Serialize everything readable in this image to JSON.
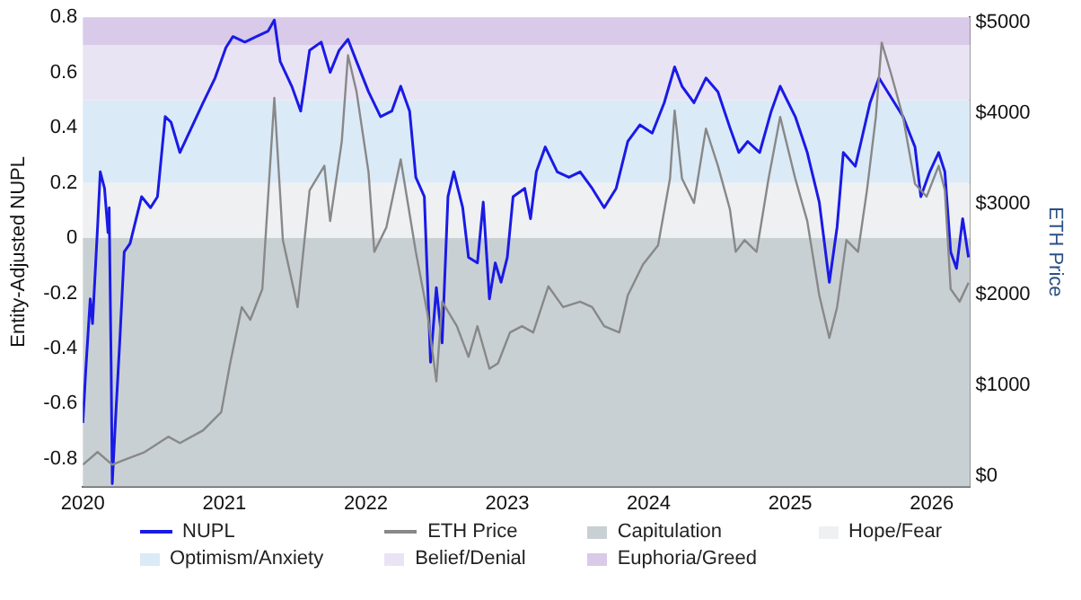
{
  "chart_data": {
    "type": "line",
    "ylabel": "Entity-Adjusted NUPL",
    "y2label": "ETH Price",
    "legend": "bottom",
    "grid": false,
    "marker": "none",
    "line_style": "solid",
    "xlim": [
      "2020-01-01",
      "2026-04-10"
    ],
    "xticks": [
      "2020",
      "2021",
      "2022",
      "2023",
      "2024",
      "2025",
      "2026"
    ],
    "ylim": [
      -0.9,
      0.8
    ],
    "yticks": [
      -0.8,
      -0.6,
      -0.4,
      -0.2,
      0,
      0.2,
      0.4,
      0.6,
      0.8
    ],
    "y2lim": [
      -120,
      5060
    ],
    "y2ticks": [
      {
        "value": 0,
        "label": "$0"
      },
      {
        "value": 1000,
        "label": "$1000"
      },
      {
        "value": 2000,
        "label": "$2000"
      },
      {
        "value": 3000,
        "label": "$3000"
      },
      {
        "value": 4000,
        "label": "$4000"
      },
      {
        "value": 5000,
        "label": "$5000"
      }
    ],
    "bands": [
      {
        "axis": "y",
        "from": -0.9,
        "to": 0,
        "label": "Capitulation",
        "color": "#c9d0d4"
      },
      {
        "axis": "y",
        "from": 0,
        "to": 0.2,
        "label": "Hope/Fear",
        "color": "#eef0f2"
      },
      {
        "axis": "y",
        "from": 0.2,
        "to": 0.5,
        "label": "Optimism/Anxiety",
        "color": "#dbeaf7"
      },
      {
        "axis": "y",
        "from": 0.5,
        "to": 0.7,
        "label": "Belief/Denial",
        "color": "#e9e4f4"
      },
      {
        "axis": "y",
        "from": 0.7,
        "to": 0.8,
        "label": "Euphoria/Greed",
        "color": "#d8cae8"
      }
    ],
    "series": [
      {
        "name": "NUPL",
        "color": "#1a1ae6",
        "x": [
          "2020-01-01",
          "2020-01-08",
          "2020-01-20",
          "2020-01-26",
          "2020-02-08",
          "2020-02-15",
          "2020-02-26",
          "2020-03-06",
          "2020-03-09",
          "2020-03-14",
          "2020-03-17",
          "2020-03-25",
          "2020-04-06",
          "2020-04-17",
          "2020-05-02",
          "2020-06-01",
          "2020-06-24",
          "2020-07-12",
          "2020-08-01",
          "2020-08-16",
          "2020-09-08",
          "2020-10-08",
          "2020-11-07",
          "2020-12-08",
          "2021-01-05",
          "2021-01-23",
          "2021-02-23",
          "2021-03-25",
          "2021-04-24",
          "2021-05-10",
          "2021-05-25",
          "2021-06-24",
          "2021-07-17",
          "2021-08-09",
          "2021-09-08",
          "2021-10-01",
          "2021-10-24",
          "2021-11-16",
          "2021-12-08",
          "2022-01-08",
          "2022-02-08",
          "2022-03-09",
          "2022-04-01",
          "2022-04-24",
          "2022-05-10",
          "2022-06-01",
          "2022-06-17",
          "2022-07-02",
          "2022-07-17",
          "2022-08-01",
          "2022-08-16",
          "2022-09-08",
          "2022-09-23",
          "2022-10-16",
          "2022-10-31",
          "2022-11-16",
          "2022-12-01",
          "2022-12-16",
          "2023-01-01",
          "2023-01-16",
          "2023-02-15",
          "2023-03-02",
          "2023-03-17",
          "2023-04-09",
          "2023-05-10",
          "2023-06-09",
          "2023-07-08",
          "2023-08-08",
          "2023-09-08",
          "2023-10-09",
          "2023-11-08",
          "2023-12-09",
          "2024-01-10",
          "2024-02-10",
          "2024-03-08",
          "2024-03-27",
          "2024-04-27",
          "2024-05-28",
          "2024-06-28",
          "2024-07-29",
          "2024-08-21",
          "2024-09-13",
          "2024-10-14",
          "2024-11-13",
          "2024-12-06",
          "2025-01-14",
          "2025-02-14",
          "2025-03-17",
          "2025-04-12",
          "2025-05-02",
          "2025-05-18",
          "2025-06-18",
          "2025-07-03",
          "2025-07-26",
          "2025-08-18",
          "2025-09-18",
          "2025-10-19",
          "2025-11-19",
          "2025-12-04",
          "2025-12-27",
          "2026-01-19",
          "2026-02-04",
          "2026-02-19",
          "2026-03-06",
          "2026-03-22",
          "2026-04-06"
        ],
        "values": [
          -0.67,
          -0.49,
          -0.22,
          -0.31,
          0.04,
          0.24,
          0.18,
          0.02,
          0.11,
          -0.45,
          -0.89,
          -0.67,
          -0.36,
          -0.05,
          -0.02,
          0.15,
          0.11,
          0.15,
          0.44,
          0.42,
          0.31,
          0.4,
          0.49,
          0.58,
          0.69,
          0.73,
          0.71,
          0.73,
          0.75,
          0.79,
          0.64,
          0.55,
          0.46,
          0.68,
          0.71,
          0.6,
          0.68,
          0.72,
          0.64,
          0.53,
          0.44,
          0.46,
          0.55,
          0.46,
          0.22,
          0.15,
          -0.45,
          -0.18,
          -0.38,
          0.15,
          0.24,
          0.11,
          -0.07,
          -0.09,
          0.13,
          -0.22,
          -0.09,
          -0.16,
          -0.07,
          0.15,
          0.18,
          0.07,
          0.24,
          0.33,
          0.24,
          0.22,
          0.24,
          0.18,
          0.11,
          0.18,
          0.35,
          0.41,
          0.38,
          0.49,
          0.62,
          0.55,
          0.49,
          0.58,
          0.53,
          0.4,
          0.31,
          0.35,
          0.31,
          0.46,
          0.55,
          0.44,
          0.31,
          0.13,
          -0.16,
          0.04,
          0.31,
          0.26,
          0.35,
          0.49,
          0.58,
          0.51,
          0.44,
          0.33,
          0.15,
          0.24,
          0.31,
          0.24,
          -0.05,
          -0.11,
          0.07,
          -0.07
        ]
      },
      {
        "name": "ETH Price",
        "color": "#888888",
        "axis": "y2",
        "x": [
          "2020-01-01",
          "2020-02-08",
          "2020-03-17",
          "2020-04-09",
          "2020-06-09",
          "2020-08-09",
          "2020-09-08",
          "2020-11-07",
          "2020-12-24",
          "2021-01-16",
          "2021-02-15",
          "2021-03-09",
          "2021-04-09",
          "2021-05-10",
          "2021-06-01",
          "2021-07-09",
          "2021-08-09",
          "2021-09-16",
          "2021-10-01",
          "2021-10-31",
          "2021-11-16",
          "2021-12-08",
          "2022-01-08",
          "2022-01-23",
          "2022-02-23",
          "2022-04-01",
          "2022-05-10",
          "2022-06-09",
          "2022-07-02",
          "2022-07-17",
          "2022-08-24",
          "2022-09-23",
          "2022-10-16",
          "2022-11-16",
          "2022-12-08",
          "2023-01-08",
          "2023-02-08",
          "2023-03-09",
          "2023-04-17",
          "2023-05-25",
          "2023-07-08",
          "2023-08-08",
          "2023-09-08",
          "2023-10-17",
          "2023-11-08",
          "2023-12-17",
          "2024-01-25",
          "2024-02-25",
          "2024-03-08",
          "2024-03-27",
          "2024-04-27",
          "2024-05-28",
          "2024-06-28",
          "2024-07-29",
          "2024-08-13",
          "2024-09-05",
          "2024-10-06",
          "2024-11-06",
          "2024-12-06",
          "2025-01-14",
          "2025-02-14",
          "2025-03-17",
          "2025-04-12",
          "2025-05-02",
          "2025-05-26",
          "2025-06-25",
          "2025-07-18",
          "2025-08-10",
          "2025-08-25",
          "2025-09-18",
          "2025-10-19",
          "2025-11-19",
          "2025-12-19",
          "2026-01-19",
          "2026-02-04",
          "2026-02-19",
          "2026-03-14",
          "2026-04-06"
        ],
        "values": [
          120,
          260,
          120,
          160,
          260,
          430,
          360,
          500,
          700,
          1240,
          1860,
          1720,
          2060,
          4170,
          2600,
          1860,
          3150,
          3420,
          2810,
          3690,
          4640,
          4240,
          3350,
          2470,
          2740,
          3490,
          2470,
          1790,
          1040,
          1920,
          1650,
          1310,
          1650,
          1180,
          1240,
          1580,
          1650,
          1580,
          2090,
          1860,
          1920,
          1860,
          1650,
          1580,
          1990,
          2330,
          2540,
          3280,
          4030,
          3280,
          3010,
          3830,
          3420,
          2940,
          2470,
          2600,
          2470,
          3280,
          3960,
          3280,
          2810,
          1990,
          1520,
          1860,
          2600,
          2470,
          3150,
          3960,
          4780,
          4440,
          3960,
          3220,
          3080,
          3420,
          3150,
          2060,
          1920,
          2130
        ]
      }
    ]
  }
}
